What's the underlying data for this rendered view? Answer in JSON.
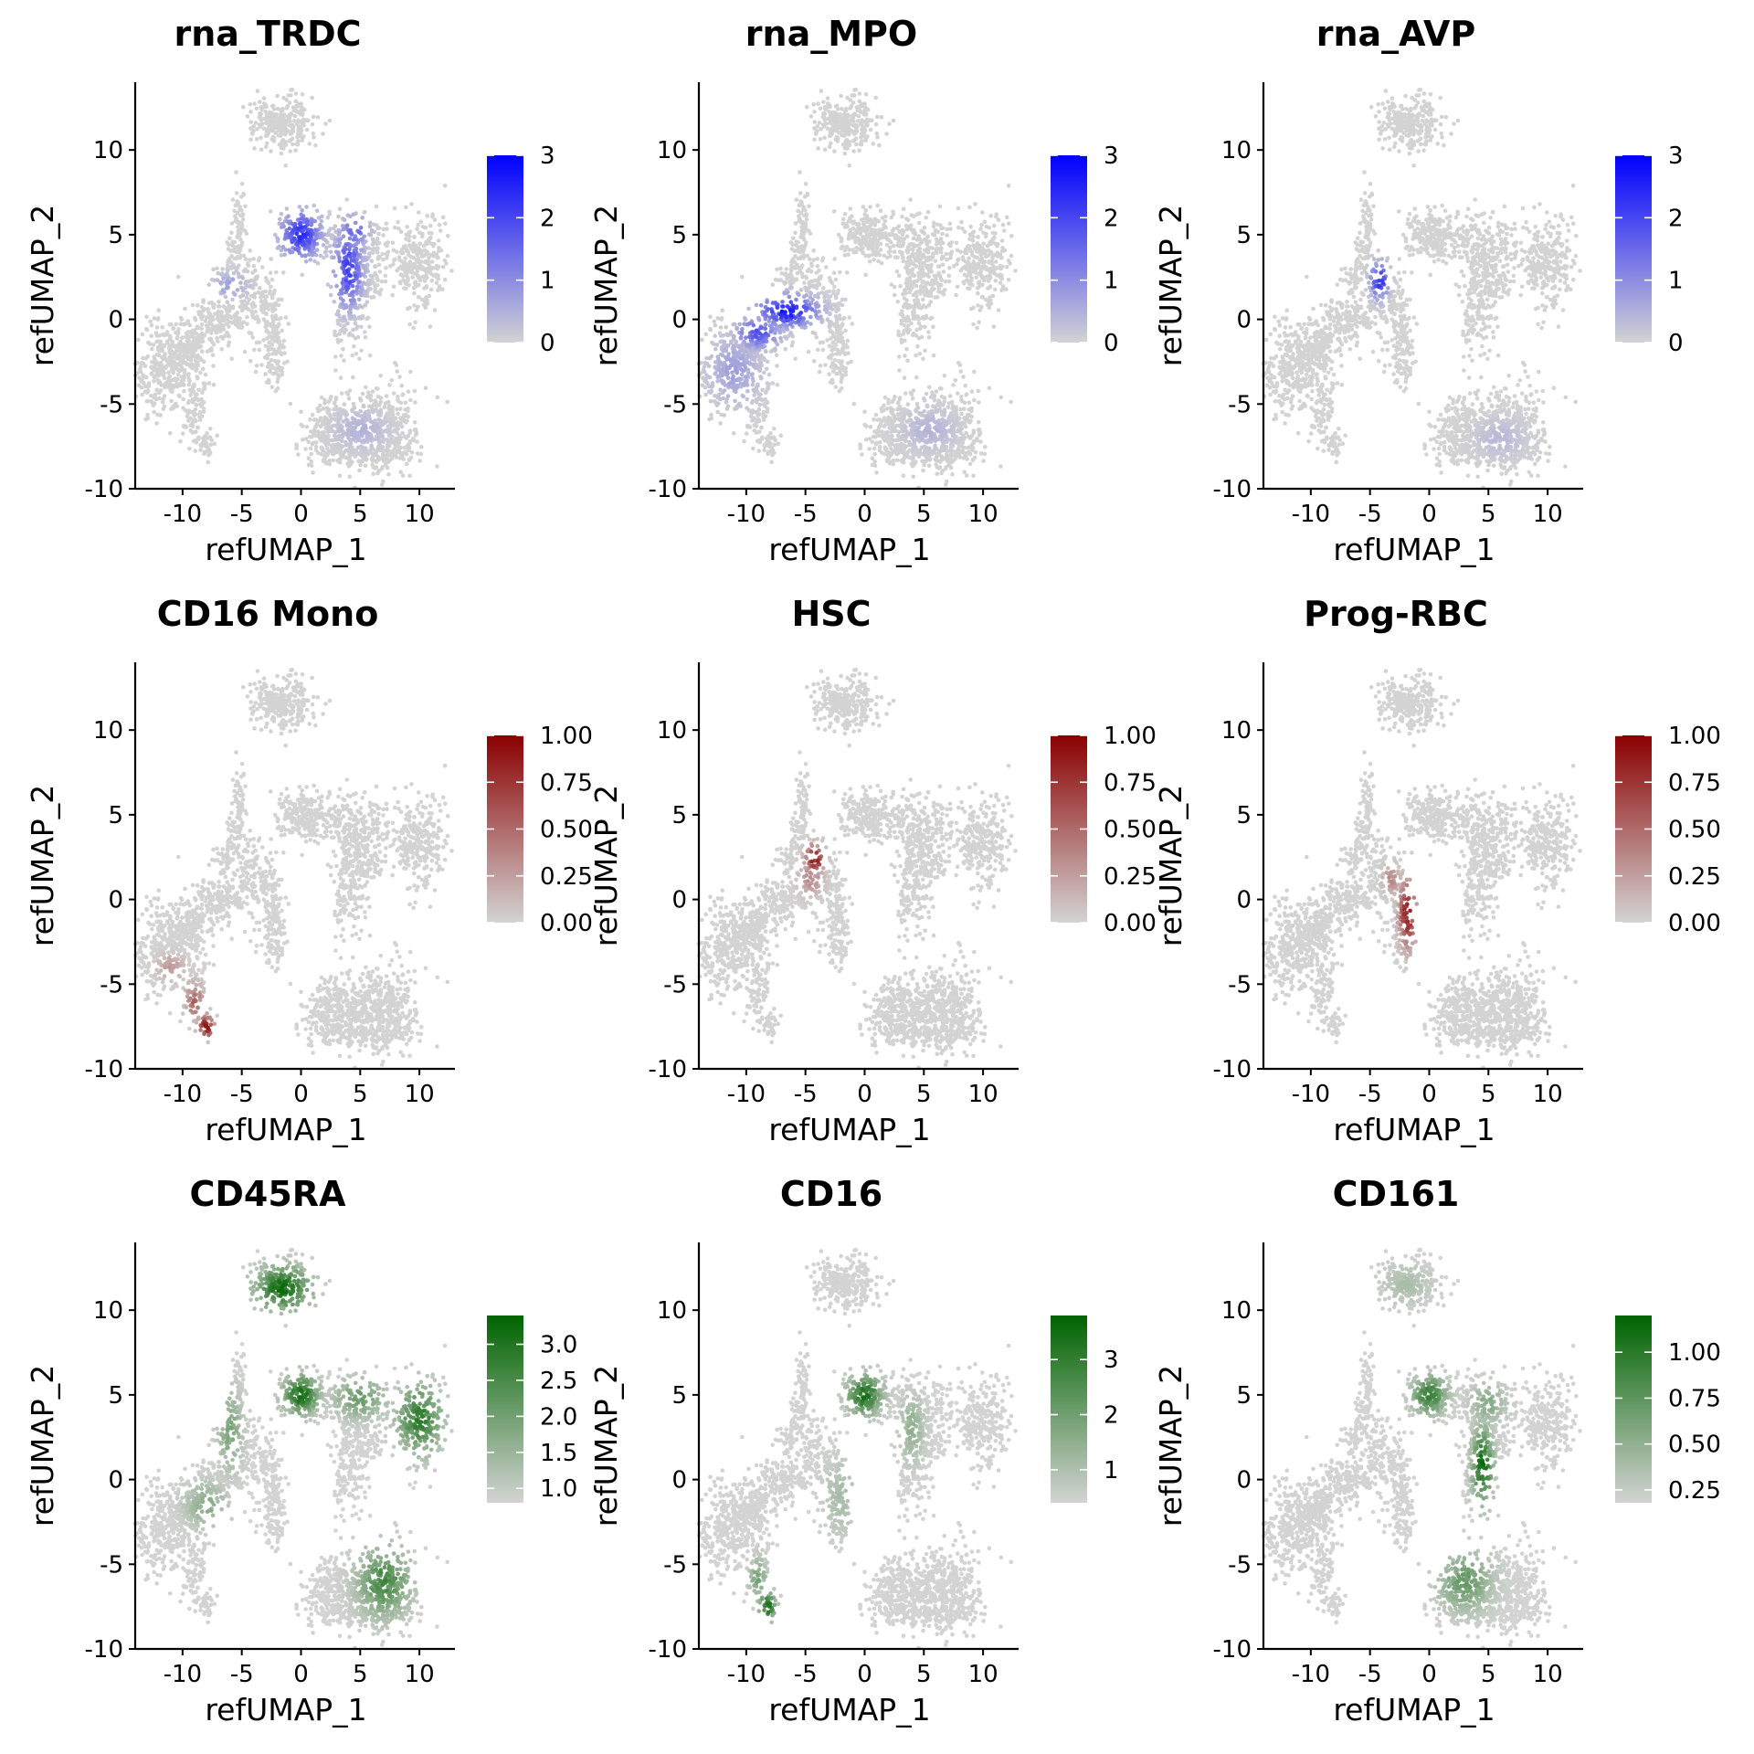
{
  "figure": {
    "ncols": 3,
    "nrows": 3
  },
  "chart_data": [
    {
      "type": "scatter",
      "title": "rna_TRDC",
      "xlabel": "refUMAP_1",
      "ylabel": "refUMAP_2",
      "xlim": [
        -14,
        13
      ],
      "ylim": [
        -10,
        14
      ],
      "xticks": [
        -10,
        -5,
        0,
        5,
        10
      ],
      "xtick_labels": [
        "-10",
        "-5",
        "0",
        "5",
        "10"
      ],
      "yticks": [
        -10,
        -5,
        0,
        5,
        10
      ],
      "ytick_labels": [
        "-10",
        "-5",
        "0",
        "5",
        "10"
      ],
      "colorbar": {
        "low_color": "#d3d3d3",
        "high_color": "#0000ff",
        "range": [
          0,
          3
        ],
        "ticks": [
          0,
          1,
          2,
          3
        ],
        "tick_labels": [
          "0",
          "1",
          "2",
          "3"
        ]
      },
      "highlights": [
        {
          "x": 0,
          "y": 5,
          "sx": 1.1,
          "sy": 0.9,
          "value": 2.5
        },
        {
          "x": 4,
          "y": 3,
          "sx": 0.8,
          "sy": 1.5,
          "value": 2.3
        },
        {
          "x": 4.5,
          "y": 5.2,
          "sx": 0.8,
          "sy": 0.6,
          "value": 1.8
        },
        {
          "x": -6,
          "y": 2,
          "sx": 1.0,
          "sy": 0.5,
          "value": 0.8
        },
        {
          "x": 5,
          "y": -6.5,
          "sx": 1.5,
          "sy": 0.8,
          "value": 0.5
        }
      ]
    },
    {
      "type": "scatter",
      "title": "rna_MPO",
      "xlabel": "refUMAP_1",
      "ylabel": "refUMAP_2",
      "xlim": [
        -14,
        13
      ],
      "ylim": [
        -10,
        14
      ],
      "xticks": [
        -10,
        -5,
        0,
        5,
        10
      ],
      "xtick_labels": [
        "-10",
        "-5",
        "0",
        "5",
        "10"
      ],
      "yticks": [
        -10,
        -5,
        0,
        5,
        10
      ],
      "ytick_labels": [
        "-10",
        "-5",
        "0",
        "5",
        "10"
      ],
      "colorbar": {
        "low_color": "#d3d3d3",
        "high_color": "#0000ff",
        "range": [
          0,
          3
        ],
        "ticks": [
          0,
          1,
          2,
          3
        ],
        "tick_labels": [
          "0",
          "1",
          "2",
          "3"
        ]
      },
      "highlights": [
        {
          "x": -6.5,
          "y": 0.5,
          "sx": 1.6,
          "sy": 0.6,
          "value": 2.9
        },
        {
          "x": -9,
          "y": -0.8,
          "sx": 1.2,
          "sy": 0.6,
          "value": 2.0
        },
        {
          "x": -11,
          "y": -3,
          "sx": 1.5,
          "sy": 1.3,
          "value": 0.8
        },
        {
          "x": 5.5,
          "y": -6.5,
          "sx": 1.5,
          "sy": 0.8,
          "value": 0.5
        }
      ]
    },
    {
      "type": "scatter",
      "title": "rna_AVP",
      "xlabel": "refUMAP_1",
      "ylabel": "refUMAP_2",
      "xlim": [
        -14,
        13
      ],
      "ylim": [
        -10,
        14
      ],
      "xticks": [
        -10,
        -5,
        0,
        5,
        10
      ],
      "xtick_labels": [
        "-10",
        "-5",
        "0",
        "5",
        "10"
      ],
      "yticks": [
        -10,
        -5,
        0,
        5,
        10
      ],
      "ytick_labels": [
        "-10",
        "-5",
        "0",
        "5",
        "10"
      ],
      "colorbar": {
        "low_color": "#d3d3d3",
        "high_color": "#0000ff",
        "range": [
          0,
          3
        ],
        "ticks": [
          0,
          1,
          2,
          3
        ],
        "tick_labels": [
          "0",
          "1",
          "2",
          "3"
        ]
      },
      "highlights": [
        {
          "x": -4.2,
          "y": 2.3,
          "sx": 0.5,
          "sy": 0.7,
          "value": 2.6
        },
        {
          "x": 6,
          "y": -7,
          "sx": 1.5,
          "sy": 0.8,
          "value": 0.4
        }
      ]
    },
    {
      "type": "scatter",
      "title": "CD16 Mono",
      "xlabel": "refUMAP_1",
      "ylabel": "refUMAP_2",
      "xlim": [
        -14,
        13
      ],
      "ylim": [
        -10,
        14
      ],
      "xticks": [
        -10,
        -5,
        0,
        5,
        10
      ],
      "xtick_labels": [
        "-10",
        "-5",
        "0",
        "5",
        "10"
      ],
      "yticks": [
        -10,
        -5,
        0,
        5,
        10
      ],
      "ytick_labels": [
        "-10",
        "-5",
        "0",
        "5",
        "10"
      ],
      "colorbar": {
        "low_color": "#d3d3d3",
        "high_color": "#8b0000",
        "range": [
          0,
          1
        ],
        "ticks": [
          0,
          0.25,
          0.5,
          0.75,
          1
        ],
        "tick_labels": [
          "0.00",
          "0.25",
          "0.50",
          "0.75",
          "1.00"
        ]
      },
      "highlights": [
        {
          "x": -8,
          "y": -7.5,
          "sx": 0.45,
          "sy": 0.45,
          "value": 1.0
        },
        {
          "x": -9,
          "y": -6,
          "sx": 0.5,
          "sy": 0.7,
          "value": 0.6
        },
        {
          "x": -11,
          "y": -4,
          "sx": 0.8,
          "sy": 0.5,
          "value": 0.3
        }
      ]
    },
    {
      "type": "scatter",
      "title": "HSC",
      "xlabel": "refUMAP_1",
      "ylabel": "refUMAP_2",
      "xlim": [
        -14,
        13
      ],
      "ylim": [
        -10,
        14
      ],
      "xticks": [
        -10,
        -5,
        0,
        5,
        10
      ],
      "xtick_labels": [
        "-10",
        "-5",
        "0",
        "5",
        "10"
      ],
      "yticks": [
        -10,
        -5,
        0,
        5,
        10
      ],
      "ytick_labels": [
        "-10",
        "-5",
        "0",
        "5",
        "10"
      ],
      "colorbar": {
        "low_color": "#d3d3d3",
        "high_color": "#8b0000",
        "range": [
          0,
          1
        ],
        "ticks": [
          0,
          0.25,
          0.5,
          0.75,
          1
        ],
        "tick_labels": [
          "0.00",
          "0.25",
          "0.50",
          "0.75",
          "1.00"
        ]
      },
      "highlights": [
        {
          "x": -4.2,
          "y": 2.4,
          "sx": 0.55,
          "sy": 0.55,
          "value": 1.0
        },
        {
          "x": -4.5,
          "y": 1.3,
          "sx": 0.7,
          "sy": 0.7,
          "value": 0.4
        }
      ]
    },
    {
      "type": "scatter",
      "title": "Prog-RBC",
      "xlabel": "refUMAP_1",
      "ylabel": "refUMAP_2",
      "xlim": [
        -14,
        13
      ],
      "ylim": [
        -10,
        14
      ],
      "xticks": [
        -10,
        -5,
        0,
        5,
        10
      ],
      "xtick_labels": [
        "-10",
        "-5",
        "0",
        "5",
        "10"
      ],
      "yticks": [
        -10,
        -5,
        0,
        5,
        10
      ],
      "ytick_labels": [
        "-10",
        "-5",
        "0",
        "5",
        "10"
      ],
      "colorbar": {
        "low_color": "#d3d3d3",
        "high_color": "#8b0000",
        "range": [
          0,
          1
        ],
        "ticks": [
          0,
          0.25,
          0.5,
          0.75,
          1
        ],
        "tick_labels": [
          "0.00",
          "0.25",
          "0.50",
          "0.75",
          "1.00"
        ]
      },
      "highlights": [
        {
          "x": -1.8,
          "y": -0.8,
          "sx": 0.5,
          "sy": 1.3,
          "value": 1.0
        },
        {
          "x": -3.2,
          "y": 1.2,
          "sx": 0.5,
          "sy": 0.6,
          "value": 0.4
        }
      ]
    },
    {
      "type": "scatter",
      "title": "CD45RA",
      "xlabel": "refUMAP_1",
      "ylabel": "refUMAP_2",
      "xlim": [
        -14,
        13
      ],
      "ylim": [
        -10,
        14
      ],
      "xticks": [
        -10,
        -5,
        0,
        5,
        10
      ],
      "xtick_labels": [
        "-10",
        "-5",
        "0",
        "5",
        "10"
      ],
      "yticks": [
        -10,
        -5,
        0,
        5,
        10
      ],
      "ytick_labels": [
        "-10",
        "-5",
        "0",
        "5",
        "10"
      ],
      "colorbar": {
        "low_color": "#d3d3d3",
        "high_color": "#006400",
        "range": [
          0.8,
          3.4
        ],
        "ticks": [
          1.0,
          1.5,
          2.0,
          2.5,
          3.0
        ],
        "tick_labels": [
          "1.0",
          "1.5",
          "2.0",
          "2.5",
          "3.0"
        ]
      },
      "highlights": [
        {
          "x": -1.5,
          "y": 11.3,
          "sx": 1.6,
          "sy": 0.9,
          "value": 3.4
        },
        {
          "x": 0,
          "y": 5,
          "sx": 1.0,
          "sy": 0.8,
          "value": 3.3
        },
        {
          "x": 10,
          "y": 3.6,
          "sx": 1.3,
          "sy": 1.4,
          "value": 3.0
        },
        {
          "x": 7,
          "y": -6,
          "sx": 1.5,
          "sy": 1.4,
          "value": 2.7
        },
        {
          "x": 5,
          "y": 4.8,
          "sx": 1.5,
          "sy": 0.8,
          "value": 2.2
        },
        {
          "x": -6,
          "y": 3,
          "sx": 0.7,
          "sy": 1.6,
          "value": 2.0
        },
        {
          "x": -8,
          "y": -1.5,
          "sx": 1.2,
          "sy": 0.9,
          "value": 1.8
        }
      ]
    },
    {
      "type": "scatter",
      "title": "CD16",
      "xlabel": "refUMAP_1",
      "ylabel": "refUMAP_2",
      "xlim": [
        -14,
        13
      ],
      "ylim": [
        -10,
        14
      ],
      "xticks": [
        -10,
        -5,
        0,
        5,
        10
      ],
      "xtick_labels": [
        "-10",
        "-5",
        "0",
        "5",
        "10"
      ],
      "yticks": [
        -10,
        -5,
        0,
        5,
        10
      ],
      "ytick_labels": [
        "-10",
        "-5",
        "0",
        "5",
        "10"
      ],
      "colorbar": {
        "low_color": "#d3d3d3",
        "high_color": "#006400",
        "range": [
          0.4,
          3.8
        ],
        "ticks": [
          1,
          2,
          3
        ],
        "tick_labels": [
          "1",
          "2",
          "3"
        ]
      },
      "highlights": [
        {
          "x": 0,
          "y": 5,
          "sx": 1.0,
          "sy": 0.8,
          "value": 3.6
        },
        {
          "x": -8.2,
          "y": -7.5,
          "sx": 0.5,
          "sy": 0.6,
          "value": 3.6
        },
        {
          "x": -9,
          "y": -5.8,
          "sx": 0.5,
          "sy": 0.8,
          "value": 2.0
        },
        {
          "x": 4,
          "y": 3,
          "sx": 0.7,
          "sy": 1.3,
          "value": 1.6
        },
        {
          "x": -2,
          "y": -1,
          "sx": 1.0,
          "sy": 1.5,
          "value": 1.2
        }
      ]
    },
    {
      "type": "scatter",
      "title": "CD161",
      "xlabel": "refUMAP_1",
      "ylabel": "refUMAP_2",
      "xlim": [
        -14,
        13
      ],
      "ylim": [
        -10,
        14
      ],
      "xticks": [
        -10,
        -5,
        0,
        5,
        10
      ],
      "xtick_labels": [
        "-10",
        "-5",
        "0",
        "5",
        "10"
      ],
      "yticks": [
        -10,
        -5,
        0,
        5,
        10
      ],
      "ytick_labels": [
        "-10",
        "-5",
        "0",
        "5",
        "10"
      ],
      "colorbar": {
        "low_color": "#d3d3d3",
        "high_color": "#006400",
        "range": [
          0.18,
          1.2
        ],
        "ticks": [
          0.25,
          0.5,
          0.75,
          1.0
        ],
        "tick_labels": [
          "0.25",
          "0.50",
          "0.75",
          "1.00"
        ]
      },
      "highlights": [
        {
          "x": 4.5,
          "y": 0.8,
          "sx": 0.6,
          "sy": 1.5,
          "value": 1.2
        },
        {
          "x": 0,
          "y": 5,
          "sx": 1.0,
          "sy": 0.8,
          "value": 1.0
        },
        {
          "x": 3,
          "y": -6,
          "sx": 1.5,
          "sy": 1.2,
          "value": 0.75
        },
        {
          "x": 5,
          "y": 4.5,
          "sx": 1.0,
          "sy": 0.8,
          "value": 0.6
        },
        {
          "x": -2,
          "y": 11.5,
          "sx": 1.5,
          "sy": 0.8,
          "value": 0.4
        }
      ]
    }
  ]
}
